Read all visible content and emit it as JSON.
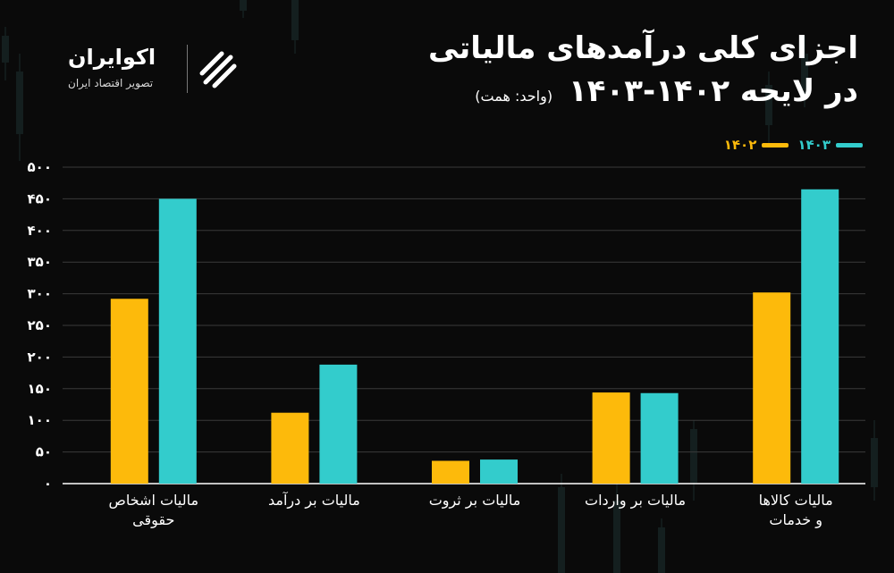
{
  "header": {
    "title_line1": "اجزای کلی درآمدهای مالیاتی",
    "title_line2": "در لایحه ۱۴۰۲-۱۴۰۳",
    "unit_note": "(واحد: همت)"
  },
  "brand": {
    "name": "اکوایران",
    "tagline": "تصویر اقتصاد ایران"
  },
  "colors": {
    "series_1402": "#FDBA0B",
    "series_1403": "#33CCCC",
    "background": "#0A0A0A",
    "gridline": "#3A3A3A"
  },
  "chart_data": {
    "type": "bar",
    "categories": [
      [
        "مالیات کالاها",
        "و خدمات"
      ],
      [
        "مالیات بر واردات"
      ],
      [
        "مالیات بر ثروت"
      ],
      [
        "مالیات بر درآمد"
      ],
      [
        "مالیات اشخاص",
        "حقوقی"
      ]
    ],
    "series": [
      {
        "name": "۱۴۰۲",
        "values": [
          302,
          144,
          36,
          112,
          292
        ]
      },
      {
        "name": "۱۴۰۳",
        "values": [
          465,
          143,
          38,
          188,
          450
        ]
      }
    ],
    "ylim": [
      0,
      500
    ],
    "yticks": [
      {
        "value": 0,
        "label": "۰"
      },
      {
        "value": 50,
        "label": "۵۰"
      },
      {
        "value": 100,
        "label": "۱۰۰"
      },
      {
        "value": 150,
        "label": "۱۵۰"
      },
      {
        "value": 200,
        "label": "۲۰۰"
      },
      {
        "value": 250,
        "label": "۲۵۰"
      },
      {
        "value": 300,
        "label": "۳۰۰"
      },
      {
        "value": 350,
        "label": "۳۵۰"
      },
      {
        "value": 400,
        "label": "۴۰۰"
      },
      {
        "value": 450,
        "label": "۴۵۰"
      },
      {
        "value": 500,
        "label": "۵۰۰"
      }
    ],
    "grid": true,
    "legend": "top-right"
  }
}
